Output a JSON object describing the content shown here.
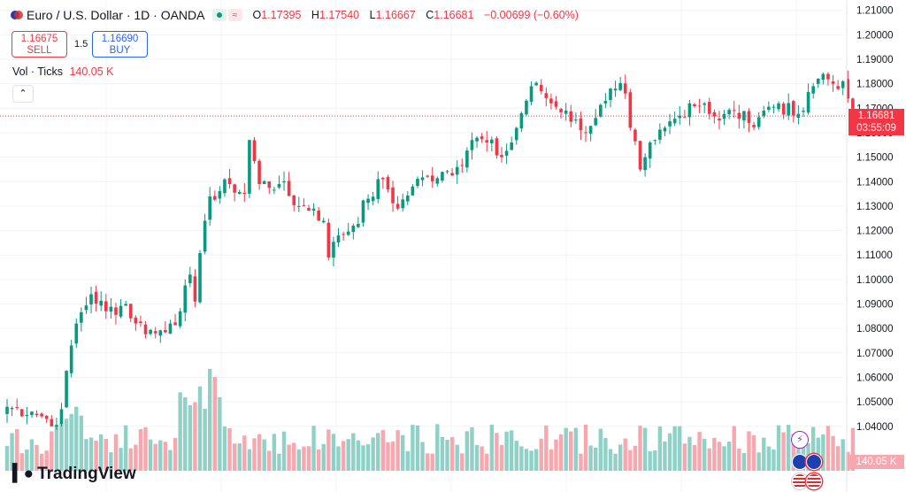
{
  "header": {
    "symbol_title": "Euro / U.S. Dollar · 1D · OANDA",
    "status_icon": "market-open-dot",
    "ohlc": [
      {
        "key": "O",
        "value": "1.17395"
      },
      {
        "key": "H",
        "value": "1.17540"
      },
      {
        "key": "L",
        "value": "1.16667"
      },
      {
        "key": "C",
        "value": "1.16681"
      },
      {
        "key": "",
        "value": "−0.00699 (−0.60%)"
      }
    ]
  },
  "trade": {
    "sell_price": "1.16675",
    "sell_label": "SELL",
    "spread": "1.5",
    "buy_price": "1.16690",
    "buy_label": "BUY"
  },
  "volume_legend": {
    "label": "Vol · Ticks",
    "value": "140.05 K"
  },
  "price_tag": {
    "price": "1.16681",
    "countdown": "03:55:09"
  },
  "volume_tag": "140.05 K",
  "logo_text": "TradingView",
  "colors": {
    "up": "#089981",
    "down": "#f23645",
    "up_vol": "#8fd1c6",
    "down_vol": "#f7a7ad",
    "grid": "#f0f3fa"
  },
  "chart_data": {
    "type": "candlestick",
    "y_axis_ticks": [
      "1.21000",
      "1.20000",
      "1.19000",
      "1.18000",
      "1.17000",
      "1.16000",
      "1.15000",
      "1.14000",
      "1.13000",
      "1.12000",
      "1.11000",
      "1.10000",
      "1.09000",
      "1.08000",
      "1.07000",
      "1.06000",
      "1.05000",
      "1.04000"
    ],
    "ylim": [
      1.0334,
      1.2117
    ],
    "last_price": 1.16681,
    "anchors": [
      [
        0,
        1.048
      ],
      [
        5,
        1.046
      ],
      [
        8,
        1.043
      ],
      [
        9,
        1.04
      ],
      [
        11,
        1.047
      ],
      [
        13,
        1.073
      ],
      [
        14,
        1.082
      ],
      [
        17,
        1.094
      ],
      [
        20,
        1.087
      ],
      [
        24,
        1.09
      ],
      [
        26,
        1.082
      ],
      [
        30,
        1.078
      ],
      [
        33,
        1.082
      ],
      [
        35,
        1.087
      ],
      [
        37,
        1.102
      ],
      [
        38,
        1.091
      ],
      [
        40,
        1.124
      ],
      [
        41,
        1.134
      ],
      [
        45,
        1.139
      ],
      [
        48,
        1.135
      ],
      [
        49,
        1.157
      ],
      [
        51,
        1.139
      ],
      [
        55,
        1.139
      ],
      [
        59,
        1.13
      ],
      [
        62,
        1.129
      ],
      [
        64,
        1.124
      ],
      [
        65,
        1.109
      ],
      [
        67,
        1.118
      ],
      [
        70,
        1.122
      ],
      [
        73,
        1.133
      ],
      [
        76,
        1.141
      ],
      [
        79,
        1.129
      ],
      [
        82,
        1.138
      ],
      [
        85,
        1.142
      ],
      [
        88,
        1.144
      ],
      [
        91,
        1.146
      ],
      [
        94,
        1.157
      ],
      [
        97,
        1.156
      ],
      [
        100,
        1.15
      ],
      [
        102,
        1.156
      ],
      [
        104,
        1.168
      ],
      [
        106,
        1.179
      ],
      [
        108,
        1.177
      ],
      [
        110,
        1.172
      ],
      [
        113,
        1.169
      ],
      [
        116,
        1.161
      ],
      [
        119,
        1.166
      ],
      [
        121,
        1.173
      ],
      [
        123,
        1.178
      ],
      [
        125,
        1.176
      ],
      [
        126,
        1.162
      ],
      [
        128,
        1.145
      ],
      [
        129,
        1.15
      ],
      [
        131,
        1.157
      ],
      [
        133,
        1.162
      ],
      [
        136,
        1.167
      ],
      [
        138,
        1.172
      ],
      [
        141,
        1.172
      ],
      [
        144,
        1.165
      ],
      [
        147,
        1.169
      ],
      [
        150,
        1.164
      ],
      [
        153,
        1.169
      ],
      [
        156,
        1.172
      ],
      [
        159,
        1.167
      ],
      [
        161,
        1.169
      ],
      [
        163,
        1.179
      ],
      [
        165,
        1.184
      ],
      [
        167,
        1.18
      ],
      [
        169,
        1.181
      ],
      [
        170,
        1.17395
      ],
      [
        171,
        1.16681
      ]
    ],
    "volume_range": [
      40,
      240
    ]
  }
}
